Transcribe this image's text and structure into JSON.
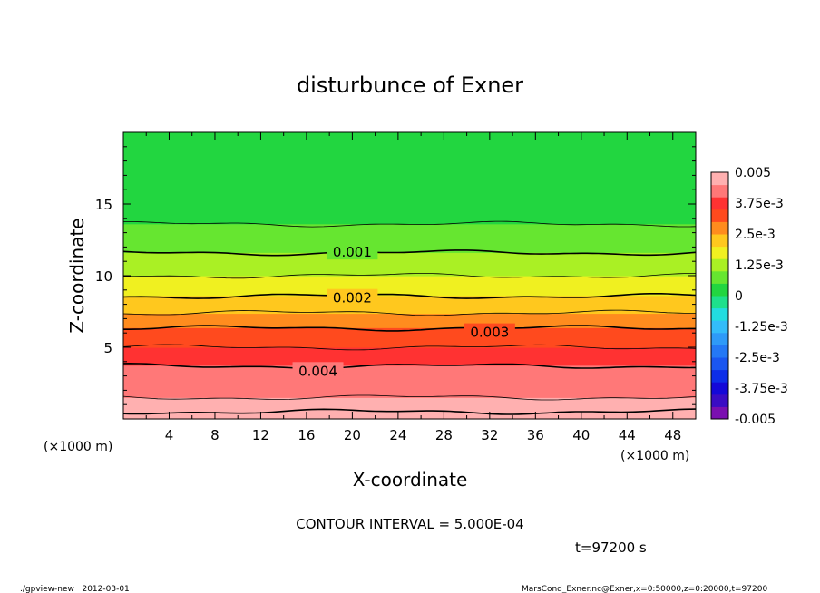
{
  "chart_data": {
    "type": "heatmap",
    "title": "disturbunce of Exner",
    "xlabel": "X-coordinate",
    "ylabel": "Z-coordinate",
    "x_unit": "(×1000 m)",
    "x_unit_right": "(×1000 m)",
    "xlim": [
      0,
      50
    ],
    "ylim": [
      0,
      20
    ],
    "x_ticks": [
      4,
      8,
      12,
      16,
      20,
      24,
      28,
      32,
      36,
      40,
      44,
      48
    ],
    "y_ticks": [
      5,
      10,
      15
    ],
    "contour_interval_text": "CONTOUR INTERVAL = 5.000E-04",
    "time_text": "t=97200 s",
    "profile": {
      "z": [
        0,
        0.5,
        1,
        1.5,
        2,
        2.5,
        3,
        3.5,
        4,
        5,
        6,
        7,
        8,
        9,
        10,
        11,
        12,
        13,
        14,
        15,
        16,
        17,
        18,
        19,
        20
      ],
      "value": [
        0.0052,
        0.005,
        0.00475,
        0.0045,
        0.00435,
        0.0042,
        0.0041,
        0.00403,
        0.00395,
        0.0035,
        0.00315,
        0.0027,
        0.0022,
        0.00185,
        0.0015,
        0.00115,
        0.0009,
        0.00065,
        0.0004,
        0.00025,
        0.00015,
        5e-05,
        3e-05,
        0.0,
        0.0
      ]
    },
    "contour_labels": [
      {
        "text": "0.001",
        "x": 20,
        "z": 11.7
      },
      {
        "text": "0.002",
        "x": 20,
        "z": 8.5
      },
      {
        "text": "0.003",
        "x": 32,
        "z": 6.1
      },
      {
        "text": "0.004",
        "x": 17,
        "z": 3.4
      }
    ],
    "colorbar": {
      "labels": [
        "0.005",
        "3.75e-3",
        "2.5e-3",
        "1.25e-3",
        "0",
        "-1.25e-3",
        "-2.5e-3",
        "-3.75e-3",
        "-0.005"
      ],
      "range": [
        -0.005,
        0.005
      ],
      "levels": 20,
      "colors": [
        "#7a0fb0",
        "#3a0cc4",
        "#1408d8",
        "#0d2ee8",
        "#1a56f0",
        "#2478f5",
        "#2e9af8",
        "#33bcfa",
        "#22dce0",
        "#1ee08c",
        "#22d640",
        "#66e630",
        "#aaf024",
        "#f0f020",
        "#ffc81e",
        "#ff8c1e",
        "#ff4a1e",
        "#ff3232",
        "#ff7878",
        "#ffb0b0"
      ]
    }
  },
  "footer": {
    "left": "./gpview-new   2012-03-01",
    "right": "MarsCond_Exner.nc@Exner,x=0:50000,z=0:20000,t=97200"
  }
}
